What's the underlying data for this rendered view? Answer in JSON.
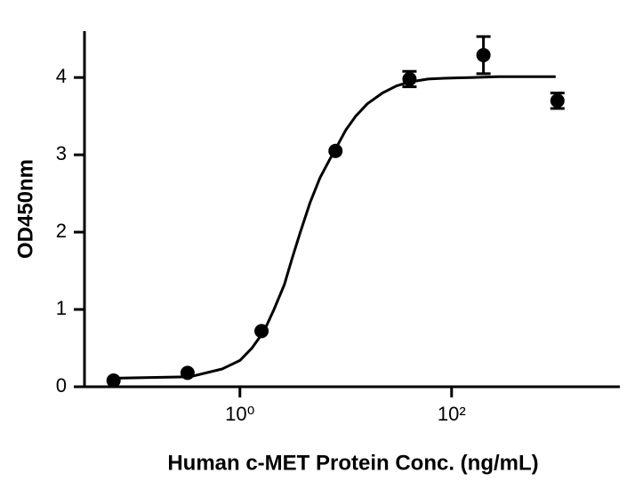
{
  "chart_data": {
    "type": "scatter",
    "x_label": "Human c-MET Protein Conc. (ng/mL)",
    "y_label": "OD450nm",
    "xscale": "log",
    "xlim": [
      0.034,
      3890
    ],
    "xticks": [
      {
        "value": 1,
        "label": "10⁰"
      },
      {
        "value": 100,
        "label": "10²"
      }
    ],
    "ylim": [
      0,
      4.6
    ],
    "yticks": [
      0,
      1,
      2,
      3,
      4
    ],
    "color": "#000000",
    "points": {
      "x": [
        0.064,
        0.32,
        1.6,
        8,
        40,
        200,
        1000
      ],
      "values": [
        0.08,
        0.18,
        0.72,
        3.05,
        3.98,
        4.29,
        3.7
      ],
      "errors": [
        null,
        null,
        null,
        null,
        0.1,
        0.24,
        0.1
      ]
    },
    "fit": {
      "x": [
        0.066,
        0.34,
        0.68,
        1,
        1.3,
        1.69,
        2.1,
        2.63,
        3.1,
        3.72,
        4.6,
        5.7,
        7,
        8.2,
        10,
        12.4,
        16,
        22.2,
        30,
        39.4,
        60,
        85.6,
        150,
        274,
        500,
        962
      ],
      "values": [
        0.11,
        0.13,
        0.23,
        0.34,
        0.5,
        0.72,
        1.0,
        1.32,
        1.65,
        2.0,
        2.38,
        2.7,
        2.93,
        3.1,
        3.32,
        3.5,
        3.66,
        3.8,
        3.89,
        3.94,
        3.98,
        3.99,
        4.0,
        4.01,
        4.01,
        4.01
      ]
    }
  }
}
